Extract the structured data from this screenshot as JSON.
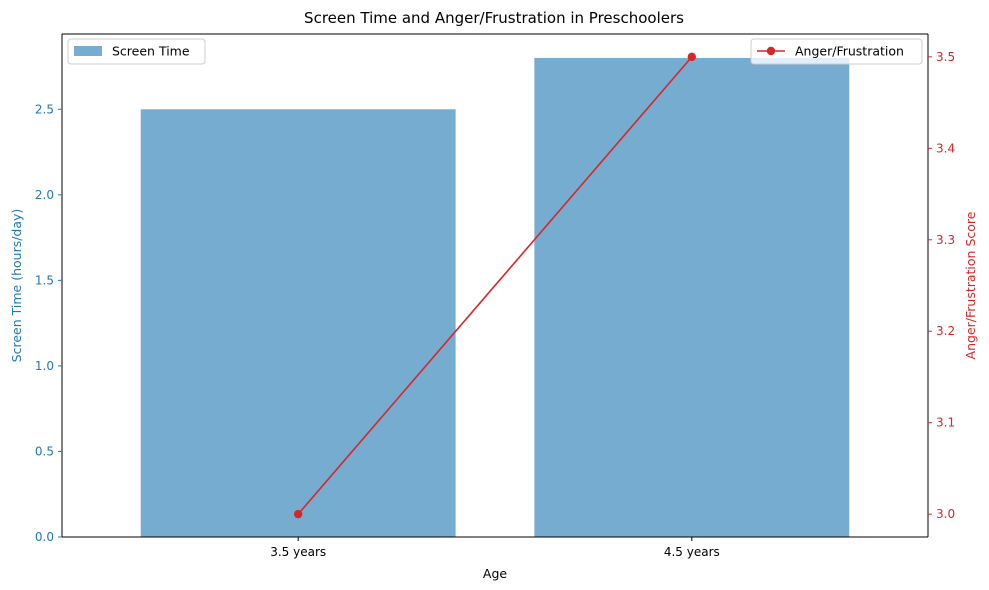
{
  "chart_data": {
    "type": "bar",
    "title": "Screen Time and Anger/Frustration in Preschoolers",
    "xlabel": "Age",
    "categories": [
      "3.5 years",
      "4.5 years"
    ],
    "series": [
      {
        "name": "Screen Time",
        "type": "bar",
        "axis": "left",
        "color": "#77acd1",
        "values": [
          2.5,
          2.8
        ]
      },
      {
        "name": "Anger/Frustration",
        "type": "line",
        "axis": "right",
        "color": "#d62728",
        "marker": "circle",
        "values": [
          3.0,
          3.5
        ]
      }
    ],
    "y_left": {
      "label": "Screen Time (hours/day)",
      "color": "#1f77b4",
      "ylim": [
        0,
        2.94
      ],
      "ticks": [
        0.0,
        0.5,
        1.0,
        1.5,
        2.0,
        2.5
      ],
      "tick_labels": [
        "0.0",
        "0.5",
        "1.0",
        "1.5",
        "2.0",
        "2.5"
      ]
    },
    "y_right": {
      "label": "Anger/Frustration Score",
      "color": "#d62728",
      "ylim": [
        2.975,
        3.525
      ],
      "ticks": [
        3.0,
        3.1,
        3.2,
        3.3,
        3.4,
        3.5
      ],
      "tick_labels": [
        "3.0",
        "3.1",
        "3.2",
        "3.3",
        "3.4",
        "3.5"
      ]
    },
    "legends": [
      {
        "series": "Screen Time",
        "placement": "upper left"
      },
      {
        "series": "Anger/Frustration",
        "placement": "upper right"
      }
    ],
    "grid": false
  }
}
